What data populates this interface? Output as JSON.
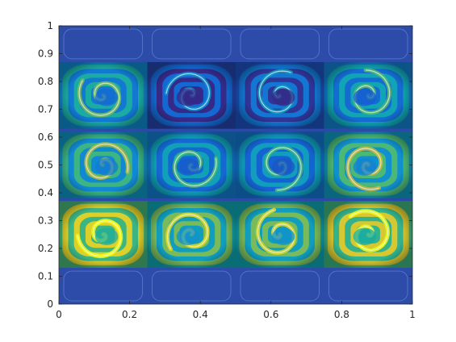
{
  "chart_data": {
    "type": "heatmap",
    "title": "",
    "xlabel": "",
    "ylabel": "",
    "xlim": [
      0,
      1
    ],
    "ylim": [
      0,
      1
    ],
    "x_ticks": [
      "0",
      "0.2",
      "0.4",
      "0.6",
      "0.8",
      "1"
    ],
    "y_ticks": [
      "0",
      "0.1",
      "0.2",
      "0.3",
      "0.4",
      "0.5",
      "0.6",
      "0.7",
      "0.8",
      "0.9",
      "1"
    ],
    "grid": false,
    "colormap": "parula",
    "colors": {
      "background_field": "#2c4aa8",
      "low": "#352a87",
      "mid_low": "#1d6fcf",
      "mid": "#0ca6ac",
      "mid_high": "#7ab94e",
      "high": "#e5b52f",
      "peak": "#f9fb0e",
      "axis": "#262626"
    },
    "cells": [
      {
        "row": "0.65-0.85",
        "x_range": [
          0.0,
          0.25
        ],
        "level": 0.45
      },
      {
        "row": "0.65-0.85",
        "x_range": [
          0.25,
          0.5
        ],
        "level": 0.12
      },
      {
        "row": "0.65-0.85",
        "x_range": [
          0.5,
          0.75
        ],
        "level": 0.18
      },
      {
        "row": "0.65-0.85",
        "x_range": [
          0.75,
          1.0
        ],
        "level": 0.4
      },
      {
        "row": "0.4-0.6",
        "x_range": [
          0.0,
          0.25
        ],
        "level": 0.52
      },
      {
        "row": "0.4-0.6",
        "x_range": [
          0.25,
          0.5
        ],
        "level": 0.38
      },
      {
        "row": "0.4-0.6",
        "x_range": [
          0.5,
          0.75
        ],
        "level": 0.36
      },
      {
        "row": "0.4-0.6",
        "x_range": [
          0.75,
          1.0
        ],
        "level": 0.55
      },
      {
        "row": "0.15-0.35",
        "x_range": [
          0.0,
          0.25
        ],
        "level": 0.78
      },
      {
        "row": "0.15-0.35",
        "x_range": [
          0.25,
          0.5
        ],
        "level": 0.62
      },
      {
        "row": "0.15-0.35",
        "x_range": [
          0.5,
          0.75
        ],
        "level": 0.62
      },
      {
        "row": "0.15-0.35",
        "x_range": [
          0.75,
          1.0
        ],
        "level": 0.76
      }
    ]
  }
}
